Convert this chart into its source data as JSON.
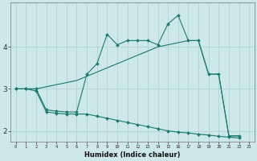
{
  "xlabel": "Humidex (Indice chaleur)",
  "xlim": [
    -0.5,
    23.5
  ],
  "ylim": [
    1.75,
    5.05
  ],
  "yticks": [
    2,
    3,
    4
  ],
  "xticks": [
    0,
    1,
    2,
    3,
    4,
    5,
    6,
    7,
    8,
    9,
    10,
    11,
    12,
    13,
    14,
    15,
    16,
    17,
    18,
    19,
    20,
    21,
    22,
    23
  ],
  "bg_color": "#cce8e8",
  "grid_color": "#aacfcf",
  "line_color": "#1a7a6e",
  "line1_x": [
    0,
    1,
    2,
    3,
    4,
    5,
    6,
    7,
    8,
    9,
    10,
    11,
    12,
    13,
    14,
    15,
    16,
    17,
    18,
    19,
    20,
    21,
    22
  ],
  "line1_y": [
    3.0,
    3.0,
    3.0,
    2.5,
    2.47,
    2.45,
    2.45,
    3.35,
    3.6,
    4.3,
    4.05,
    4.15,
    4.15,
    4.15,
    4.05,
    4.55,
    4.75,
    4.15,
    4.15,
    3.35,
    3.35,
    1.88,
    1.88
  ],
  "line2_x": [
    0,
    1,
    2,
    3,
    4,
    5,
    6,
    7,
    8,
    9,
    10,
    11,
    12,
    13,
    14,
    15,
    16,
    17,
    18,
    19,
    20,
    21,
    22
  ],
  "line2_y": [
    3.0,
    3.0,
    2.95,
    2.45,
    2.42,
    2.4,
    2.4,
    2.4,
    2.35,
    2.3,
    2.25,
    2.2,
    2.15,
    2.1,
    2.05,
    2.0,
    1.97,
    1.95,
    1.92,
    1.9,
    1.87,
    1.85,
    1.83
  ],
  "line3_x": [
    0,
    1,
    2,
    3,
    4,
    5,
    6,
    7,
    8,
    9,
    10,
    11,
    12,
    13,
    14,
    15,
    16,
    17,
    18,
    19,
    20,
    21,
    22
  ],
  "line3_y": [
    3.0,
    3.0,
    3.0,
    3.05,
    3.1,
    3.15,
    3.2,
    3.3,
    3.4,
    3.5,
    3.6,
    3.7,
    3.8,
    3.9,
    4.0,
    4.05,
    4.1,
    4.15,
    4.15,
    3.35,
    3.35,
    1.88,
    1.88
  ]
}
